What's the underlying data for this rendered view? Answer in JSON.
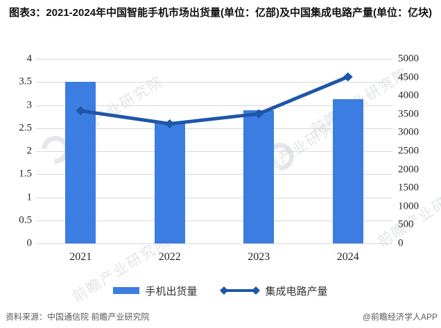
{
  "title": "图表3：2021-2024年中国智能手机市场出货量(单位：亿部)及中国集成电路产量(单位：亿块)",
  "chart_data": {
    "type": "combo",
    "title": "图表3：2021-2024年中国智能手机市场出货量(单位：亿部)及中国集成电路产量(单位：亿块)",
    "categories": [
      "2021",
      "2022",
      "2023",
      "2024"
    ],
    "series": [
      {
        "name": "手机出货量",
        "type": "bar",
        "axis": "left",
        "unit": "亿部",
        "values": [
          3.5,
          2.6,
          2.88,
          3.13
        ]
      },
      {
        "name": "集成电路产量",
        "type": "line",
        "axis": "right",
        "unit": "亿块",
        "values": [
          3594,
          3242,
          3514,
          4514
        ]
      }
    ],
    "left_axis": {
      "min": 0,
      "max": 4,
      "tick_step": 0.5,
      "ticks": [
        "4",
        "3.5",
        "3",
        "2.5",
        "2",
        "1.5",
        "1",
        "0.5",
        "0"
      ]
    },
    "right_axis": {
      "min": 0,
      "max": 5000,
      "tick_step": 500,
      "ticks": [
        "5000",
        "4500",
        "4000",
        "3500",
        "3000",
        "2500",
        "2000",
        "1500",
        "1000",
        "500",
        "0"
      ]
    },
    "grid": true,
    "legend_position": "bottom"
  },
  "legend": {
    "bar_label": "手机出货量",
    "line_label": "集成电路产量"
  },
  "footer": {
    "source": "资料来源：中国通信院 前瞻产业研究院",
    "credit": "@前瞻经济学人APP"
  },
  "watermark": {
    "text": "前瞻产业研究院"
  },
  "colors": {
    "bar": "#3B7DE0",
    "line": "#1E56A8",
    "grid": "#D9D9D9",
    "axis_text": "#262626",
    "footer_text": "#5A5A5A",
    "watermark": "#9FA8B5"
  }
}
